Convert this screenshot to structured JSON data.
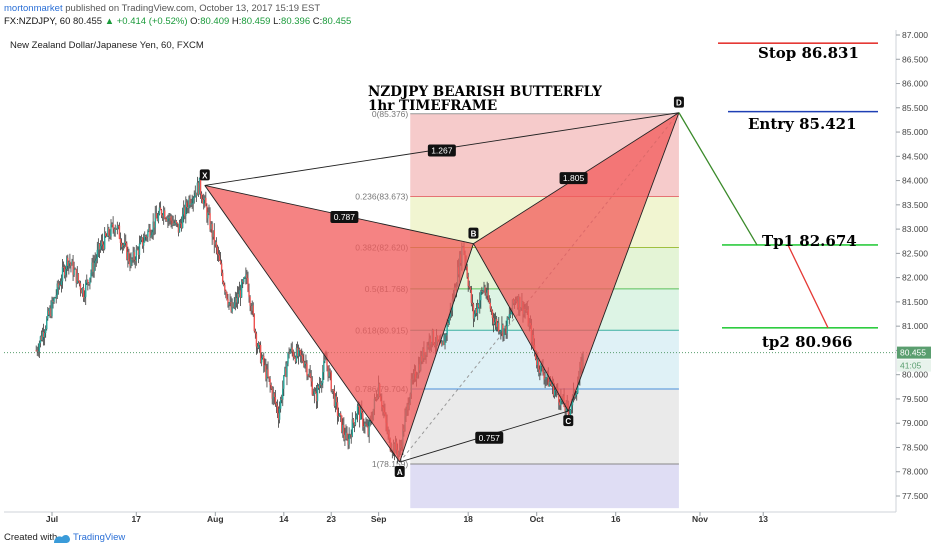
{
  "header": {
    "author": "mortonmarket",
    "published_text": "published on TradingView.com, October 13, 2017 15:19 EST",
    "symbol": "FX:NZDJPY, 60",
    "last": "80.455",
    "change": "▲ +0.414 (+0.52%)",
    "o_label": "O:",
    "o": "80.409",
    "h_label": "H:",
    "h": "80.459",
    "l_label": "L:",
    "l": "80.396",
    "c_label": "C:",
    "c": "80.455",
    "chart_title": "New Zealand Dollar/Japanese Yen, 60, FXCM"
  },
  "footer": {
    "created_with": "Created with",
    "brand": "TradingView"
  },
  "annotations": {
    "pattern_title": "NZDJPY BEARISH BUTTERFLY",
    "timeframe": "1hr TIMEFRAME",
    "stop": "Stop 86.831",
    "entry": "Entry 85.421",
    "tp1": "Tp1   82.674",
    "tp2": "tp2    80.966"
  },
  "colors": {
    "bull": "#26a69a",
    "bear": "#ef5350",
    "pattern_fill": "#f25a5a",
    "stop_line": "#e53935",
    "entry_line": "#1e3fb4",
    "tp_line": "#2ecc40",
    "price_label": "#5a9e6f"
  },
  "chart_data": {
    "type": "candlestick",
    "symbol": "NZDJPY",
    "timeframe": "60",
    "y_axis": {
      "ylim": [
        77.2,
        87.2
      ],
      "ticks": [
        "77.500",
        "78.000",
        "78.500",
        "79.000",
        "79.500",
        "80.000",
        "80.500",
        "81.000",
        "81.500",
        "82.000",
        "82.500",
        "83.000",
        "83.500",
        "84.000",
        "84.500",
        "85.000",
        "85.500",
        "86.000",
        "86.500",
        "87.000"
      ]
    },
    "x_axis": {
      "ticks": [
        {
          "label": "Jul",
          "day": 0
        },
        {
          "label": "17",
          "day": 16
        },
        {
          "label": "Aug",
          "day": 31
        },
        {
          "label": "14",
          "day": 44
        },
        {
          "label": "23",
          "day": 53
        },
        {
          "label": "Sep",
          "day": 62
        },
        {
          "label": "18",
          "day": 79
        },
        {
          "label": "Oct",
          "day": 92
        },
        {
          "label": "16",
          "day": 107
        },
        {
          "label": "Nov",
          "day": 123
        },
        {
          "label": "13",
          "day": 135
        }
      ]
    },
    "last_price": "80.455",
    "countdown": "41:05",
    "price_path": [
      [
        -3,
        80.5
      ],
      [
        0,
        81.4
      ],
      [
        3,
        82.4
      ],
      [
        6,
        81.7
      ],
      [
        9,
        82.6
      ],
      [
        12,
        83.1
      ],
      [
        15,
        82.3
      ],
      [
        18,
        82.9
      ],
      [
        21,
        83.4
      ],
      [
        24,
        83.0
      ],
      [
        26,
        83.6
      ],
      [
        28,
        83.9
      ],
      [
        30,
        83.1
      ],
      [
        32,
        82.2
      ],
      [
        34,
        81.3
      ],
      [
        37,
        82.0
      ],
      [
        39,
        80.6
      ],
      [
        41,
        79.9
      ],
      [
        43,
        79.2
      ],
      [
        45,
        80.5
      ],
      [
        48,
        80.3
      ],
      [
        50,
        79.5
      ],
      [
        52,
        80.3
      ],
      [
        54,
        79.3
      ],
      [
        56,
        78.6
      ],
      [
        58,
        79.3
      ],
      [
        60,
        78.8
      ],
      [
        62,
        79.8
      ],
      [
        64,
        78.6
      ],
      [
        66,
        78.4
      ],
      [
        68,
        79.7
      ],
      [
        70,
        80.3
      ],
      [
        72,
        80.8
      ],
      [
        74,
        80.5
      ],
      [
        76,
        81.5
      ],
      [
        78,
        82.7
      ],
      [
        80,
        81.2
      ],
      [
        82,
        81.8
      ],
      [
        84,
        81.1
      ],
      [
        86,
        80.9
      ],
      [
        88,
        81.6
      ],
      [
        90,
        81.3
      ],
      [
        92,
        80.3
      ],
      [
        94,
        79.9
      ],
      [
        96,
        79.6
      ],
      [
        98,
        79.2
      ],
      [
        100,
        79.9
      ],
      [
        101,
        80.45
      ]
    ],
    "fibonacci": {
      "levels": [
        {
          "ratio": "0",
          "label": "0(85.376)",
          "price": 85.376
        },
        {
          "ratio": "0.236",
          "label": "0.236(83.673)",
          "price": 83.673
        },
        {
          "ratio": "0.382",
          "label": "0.382(82.620)",
          "price": 82.62
        },
        {
          "ratio": "0.5",
          "label": "0.5(81.768)",
          "price": 81.768
        },
        {
          "ratio": "0.618",
          "label": "0.618(80.915)",
          "price": 80.915
        },
        {
          "ratio": "0.786",
          "label": "0.786(79.704)",
          "price": 79.704
        },
        {
          "ratio": "1",
          "label": "1(78.159)",
          "price": 78.159
        }
      ],
      "start_day": 68,
      "end_day": 119,
      "extension_bottom": 77.25
    },
    "pattern": {
      "name": "Bearish Butterfly",
      "points": [
        {
          "label": "X",
          "day": 29,
          "price": 83.9
        },
        {
          "label": "A",
          "day": 66,
          "price": 78.2
        },
        {
          "label": "B",
          "day": 80,
          "price": 82.7
        },
        {
          "label": "C",
          "day": 98,
          "price": 79.25
        },
        {
          "label": "D",
          "day": 119,
          "price": 85.4
        }
      ],
      "ratios": [
        {
          "label": "1.267",
          "day": 74,
          "price": 84.62
        },
        {
          "label": "0.787",
          "day": 55.5,
          "price": 83.25
        },
        {
          "label": "1.805",
          "day": 99,
          "price": 84.05
        },
        {
          "label": "0.757",
          "day": 83,
          "price": 78.7
        }
      ]
    },
    "trade_levels": [
      {
        "name": "Stop",
        "price": 86.831
      },
      {
        "name": "Entry",
        "price": 85.421
      },
      {
        "name": "Tp1",
        "price": 82.674
      },
      {
        "name": "tp2",
        "price": 80.966
      }
    ]
  }
}
